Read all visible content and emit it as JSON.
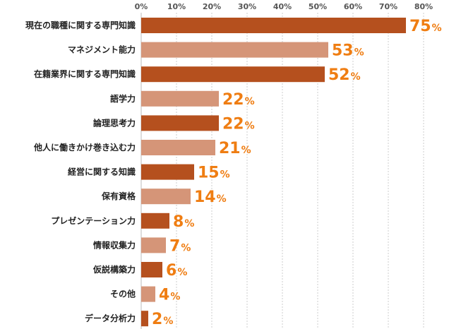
{
  "chart_data": {
    "type": "bar",
    "orientation": "horizontal",
    "categories": [
      "現在の職種に関する専門知識",
      "マネジメント能力",
      "在籍業界に関する専門知識",
      "語学力",
      "論理思考力",
      "他人に働きかけ巻き込む力",
      "経営に関する知識",
      "保有資格",
      "プレゼンテーション力",
      "情報収集力",
      "仮説構築力",
      "その他",
      "データ分析力"
    ],
    "values": [
      75,
      53,
      52,
      22,
      22,
      21,
      15,
      14,
      8,
      7,
      6,
      4,
      2
    ],
    "value_suffix": "%",
    "ticks": [
      "0%",
      "10%",
      "20%",
      "30%",
      "40%",
      "50%",
      "60%",
      "70%",
      "80%"
    ],
    "xlim": [
      0,
      80
    ],
    "grid": true,
    "bar_colors": [
      "#b5501e",
      "#d59578"
    ],
    "label_color": "#ef7d12"
  }
}
